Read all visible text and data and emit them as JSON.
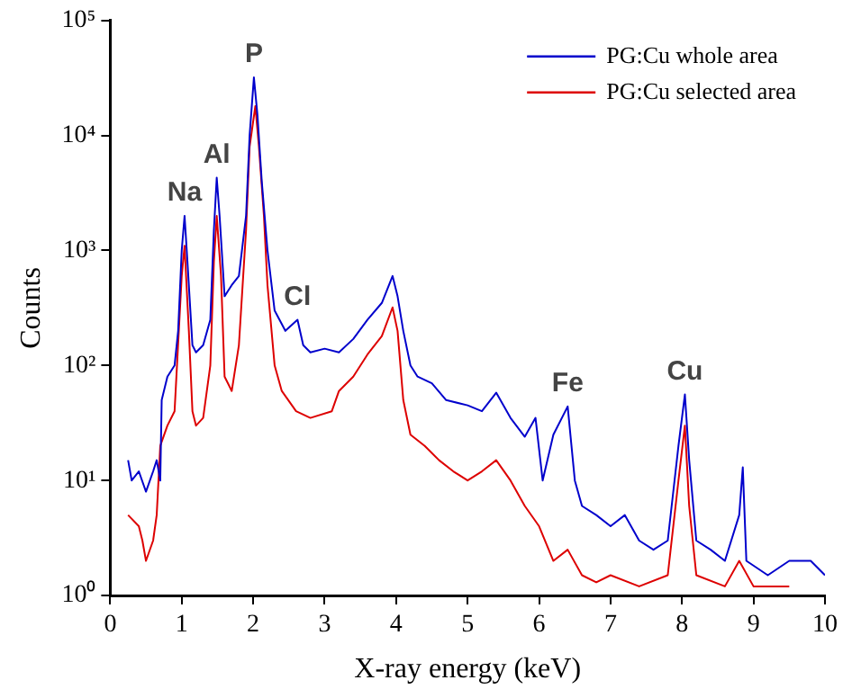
{
  "chart_data": {
    "type": "line",
    "xlabel": "X-ray energy (keV)",
    "ylabel": "Counts",
    "log": "y",
    "xlim": [
      0,
      10
    ],
    "xticks": [
      0,
      1,
      2,
      3,
      4,
      5,
      6,
      7,
      8,
      9,
      10
    ],
    "ylim": [
      1,
      100000
    ],
    "yticks": [
      {
        "value": 1,
        "label": "10⁰"
      },
      {
        "value": 10,
        "label": "10¹"
      },
      {
        "value": 100,
        "label": "10²"
      },
      {
        "value": 1000,
        "label": "10³"
      },
      {
        "value": 10000,
        "label": "10⁴"
      },
      {
        "value": 100000,
        "label": "10⁵"
      }
    ],
    "grid": false,
    "legend": "top right",
    "marker": "none",
    "line_style": "solid",
    "series": [
      {
        "name": "PG:Cu whole area",
        "color": "#0000cc",
        "x": [
          0.25,
          0.3,
          0.4,
          0.5,
          0.6,
          0.65,
          0.7,
          0.72,
          0.8,
          0.9,
          0.95,
          1.0,
          1.04,
          1.08,
          1.15,
          1.2,
          1.3,
          1.4,
          1.45,
          1.49,
          1.53,
          1.6,
          1.7,
          1.8,
          1.9,
          1.95,
          2.01,
          2.06,
          2.12,
          2.2,
          2.3,
          2.45,
          2.62,
          2.7,
          2.8,
          3.0,
          3.2,
          3.4,
          3.6,
          3.8,
          3.95,
          4.02,
          4.1,
          4.2,
          4.3,
          4.5,
          4.7,
          5.0,
          5.2,
          5.4,
          5.6,
          5.8,
          5.95,
          6.05,
          6.2,
          6.4,
          6.5,
          6.6,
          6.8,
          7.0,
          7.2,
          7.4,
          7.6,
          7.8,
          7.95,
          8.04,
          8.1,
          8.2,
          8.4,
          8.6,
          8.8,
          8.85,
          8.9,
          9.2,
          9.5,
          9.8,
          10
        ],
        "values": [
          15,
          10,
          12,
          8,
          12,
          15,
          10,
          50,
          80,
          100,
          200,
          1000,
          2000,
          800,
          150,
          130,
          150,
          250,
          1500,
          4300,
          2000,
          400,
          500,
          600,
          2000,
          10000,
          32000,
          15000,
          4000,
          1000,
          300,
          200,
          250,
          150,
          130,
          140,
          130,
          170,
          250,
          350,
          600,
          400,
          200,
          100,
          80,
          70,
          50,
          45,
          40,
          58,
          35,
          24,
          35,
          10,
          25,
          44,
          10,
          6,
          5,
          4,
          5,
          3,
          2.5,
          3,
          20,
          56,
          15,
          3,
          2.5,
          2,
          5,
          13,
          2,
          1.5,
          2,
          2,
          1.5
        ]
      },
      {
        "name": "PG:Cu selected area",
        "color": "#dd0000",
        "x": [
          0.25,
          0.4,
          0.45,
          0.5,
          0.6,
          0.65,
          0.7,
          0.8,
          0.9,
          1.0,
          1.04,
          1.1,
          1.15,
          1.2,
          1.3,
          1.4,
          1.45,
          1.49,
          1.55,
          1.6,
          1.7,
          1.8,
          1.9,
          1.95,
          2.03,
          2.08,
          2.15,
          2.2,
          2.3,
          2.4,
          2.6,
          2.8,
          3.1,
          3.2,
          3.4,
          3.6,
          3.8,
          3.95,
          4.02,
          4.1,
          4.2,
          4.4,
          4.6,
          4.8,
          5.0,
          5.2,
          5.4,
          5.6,
          5.8,
          6.0,
          6.2,
          6.4,
          6.6,
          6.8,
          7.0,
          7.4,
          7.8,
          7.95,
          8.04,
          8.1,
          8.2,
          8.6,
          8.8,
          9.0,
          9.5
        ],
        "values": [
          5,
          4,
          3,
          2,
          3,
          5,
          20,
          30,
          40,
          600,
          1100,
          200,
          40,
          30,
          35,
          100,
          800,
          2000,
          600,
          80,
          60,
          150,
          1500,
          8000,
          18000,
          8000,
          2000,
          500,
          100,
          60,
          40,
          35,
          40,
          60,
          80,
          125,
          180,
          320,
          200,
          50,
          25,
          20,
          15,
          12,
          10,
          12,
          15,
          10,
          6,
          4,
          2,
          2.5,
          1.5,
          1.3,
          1.5,
          1.2,
          1.5,
          10,
          30,
          6,
          1.5,
          1.2,
          2,
          1.2,
          1.2
        ]
      }
    ],
    "annotations": [
      {
        "text": "Na",
        "x": 1.04,
        "y": 2000
      },
      {
        "text": "Al",
        "x": 1.49,
        "y": 4300
      },
      {
        "text": "P",
        "x": 2.01,
        "y": 32000
      },
      {
        "text": "Cl",
        "x": 2.62,
        "y": 250
      },
      {
        "text": "Fe",
        "x": 6.4,
        "y": 44
      },
      {
        "text": "Cu",
        "x": 8.04,
        "y": 56
      }
    ]
  }
}
